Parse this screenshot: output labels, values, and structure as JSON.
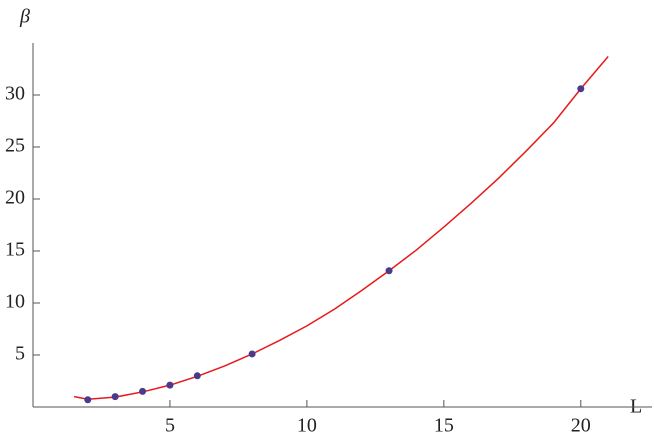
{
  "chart_data": {
    "type": "scatter",
    "x_label": "L",
    "y_label": "β",
    "x": [
      2,
      3,
      4,
      5,
      6,
      8,
      13,
      20
    ],
    "values": [
      0.7,
      1.0,
      1.5,
      2.1,
      3.0,
      5.1,
      13.1,
      30.6
    ],
    "color": "#4b3a8c",
    "fit": {
      "color": "#e8191b",
      "x": [
        1.5,
        2,
        3,
        4,
        5,
        6,
        7,
        8,
        9,
        10,
        11,
        12,
        13,
        14,
        15,
        16,
        17,
        18,
        19,
        20,
        21
      ],
      "values": [
        1.0,
        0.75,
        0.95,
        1.45,
        2.1,
        2.95,
        3.95,
        5.1,
        6.4,
        7.8,
        9.4,
        11.2,
        13.1,
        15.1,
        17.3,
        19.6,
        22.0,
        24.6,
        27.3,
        30.6,
        33.7
      ]
    },
    "xlim": [
      0,
      22.6
    ],
    "ylim": [
      0,
      35
    ],
    "xticks": [
      5,
      10,
      15,
      20
    ],
    "yticks": [
      5,
      10,
      15,
      20,
      25,
      30
    ]
  }
}
